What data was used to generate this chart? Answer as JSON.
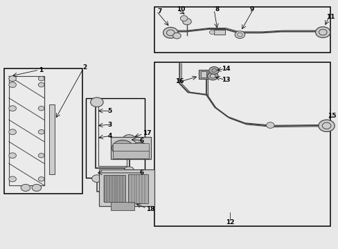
{
  "bg_color": "#e8e8e8",
  "box_bg": "#ebebeb",
  "white": "#ffffff",
  "black": "#000000",
  "gray": "#888888",
  "dark_gray": "#444444",
  "light_gray": "#cccccc",
  "med_gray": "#aaaaaa",
  "dark_med": "#666666"
}
